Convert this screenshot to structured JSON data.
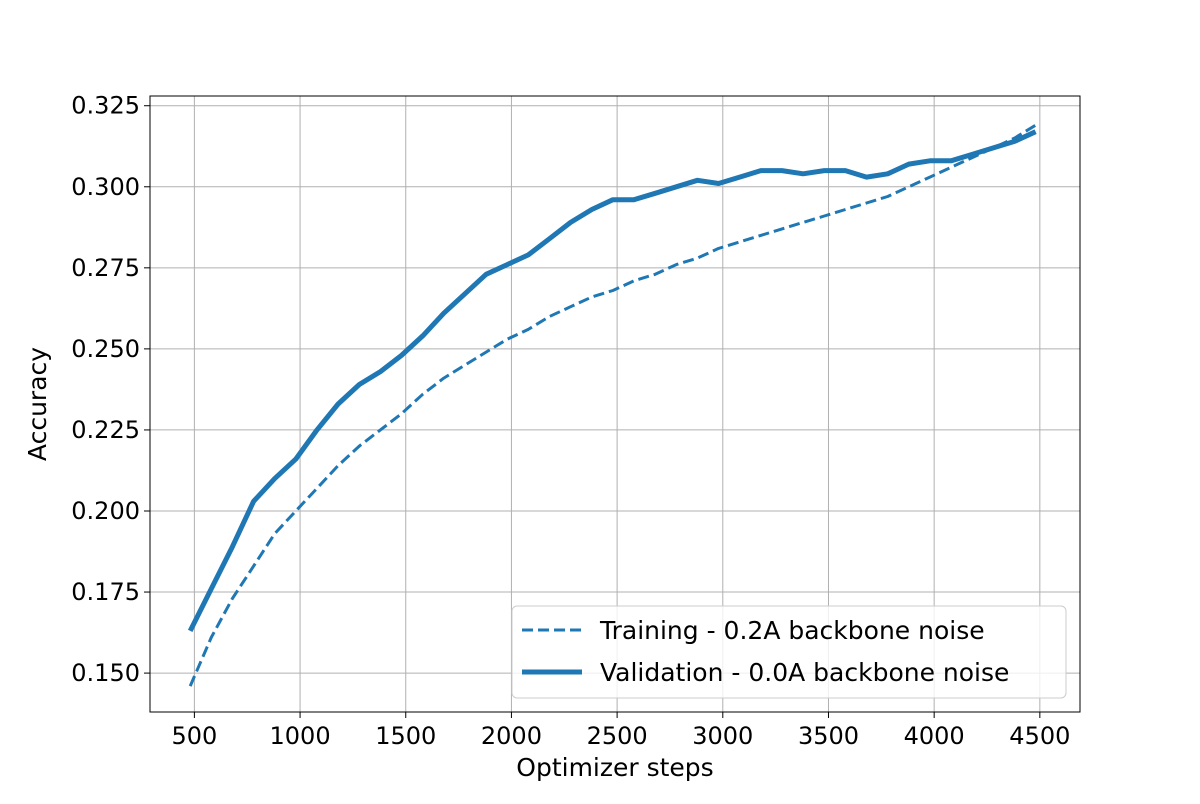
{
  "chart_data": {
    "type": "line",
    "title": "",
    "xlabel": "Optimizer steps",
    "ylabel": "Accuracy",
    "xlim": [
      290,
      4690
    ],
    "ylim": [
      0.138,
      0.328
    ],
    "xticks": [
      500,
      1000,
      1500,
      2000,
      2500,
      3000,
      3500,
      4000,
      4500
    ],
    "xtick_labels": [
      "500",
      "1000",
      "1500",
      "2000",
      "2500",
      "3000",
      "3500",
      "4000",
      "4500"
    ],
    "yticks": [
      0.15,
      0.175,
      0.2,
      0.225,
      0.25,
      0.275,
      0.3,
      0.325
    ],
    "ytick_labels": [
      "0.150",
      "0.175",
      "0.200",
      "0.225",
      "0.250",
      "0.275",
      "0.300",
      "0.325"
    ],
    "grid": true,
    "legend_position": "lower-right",
    "series": [
      {
        "name": "Training - 0.2A backbone noise",
        "style": "dashed",
        "color": "#1f77b4",
        "x": [
          480,
          580,
          680,
          780,
          880,
          980,
          1080,
          1180,
          1280,
          1380,
          1480,
          1580,
          1680,
          1780,
          1880,
          1980,
          2080,
          2180,
          2280,
          2380,
          2480,
          2580,
          2680,
          2780,
          2880,
          2980,
          3080,
          3180,
          3280,
          3380,
          3480,
          3580,
          3680,
          3780,
          3880,
          3980,
          4080,
          4180,
          4280,
          4380,
          4480
        ],
        "y": [
          0.146,
          0.161,
          0.173,
          0.183,
          0.193,
          0.2,
          0.207,
          0.214,
          0.22,
          0.225,
          0.23,
          0.236,
          0.241,
          0.245,
          0.249,
          0.253,
          0.256,
          0.26,
          0.263,
          0.266,
          0.268,
          0.271,
          0.273,
          0.276,
          0.278,
          0.281,
          0.283,
          0.285,
          0.287,
          0.289,
          0.291,
          0.293,
          0.295,
          0.297,
          0.3,
          0.303,
          0.306,
          0.309,
          0.312,
          0.315,
          0.319
        ]
      },
      {
        "name": "Validation - 0.0A backbone noise",
        "style": "solid",
        "color": "#1f77b4",
        "x": [
          480,
          580,
          680,
          780,
          880,
          980,
          1080,
          1180,
          1280,
          1380,
          1480,
          1580,
          1680,
          1780,
          1880,
          1980,
          2080,
          2180,
          2280,
          2380,
          2480,
          2580,
          2680,
          2780,
          2880,
          2980,
          3080,
          3180,
          3280,
          3380,
          3480,
          3580,
          3680,
          3780,
          3880,
          3980,
          4080,
          4180,
          4280,
          4380,
          4480
        ],
        "y": [
          0.163,
          0.176,
          0.189,
          0.203,
          0.21,
          0.216,
          0.225,
          0.233,
          0.239,
          0.243,
          0.248,
          0.254,
          0.261,
          0.267,
          0.273,
          0.276,
          0.279,
          0.284,
          0.289,
          0.293,
          0.296,
          0.296,
          0.298,
          0.3,
          0.302,
          0.301,
          0.303,
          0.305,
          0.305,
          0.304,
          0.305,
          0.305,
          0.303,
          0.304,
          0.307,
          0.308,
          0.308,
          0.31,
          0.312,
          0.314,
          0.317
        ]
      }
    ]
  }
}
